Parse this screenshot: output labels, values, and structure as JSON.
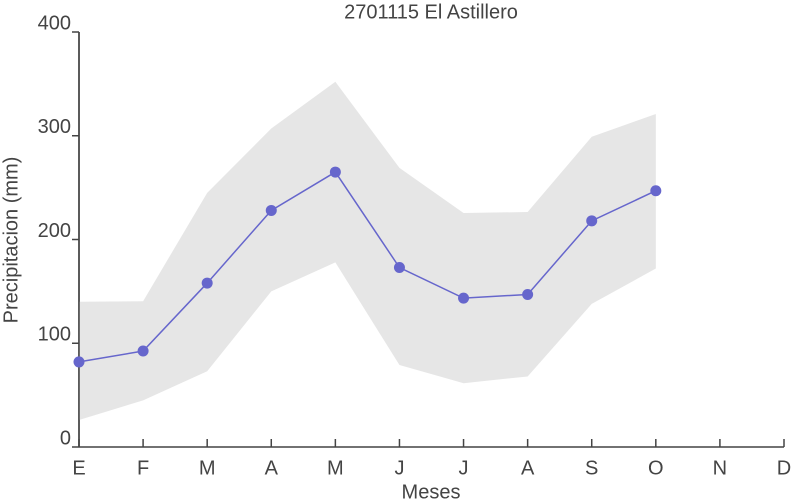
{
  "chart_data": {
    "type": "line",
    "title": "2701115 El Astillero",
    "x_label": "Meses",
    "y_label": "Precipitacion (mm)",
    "categories": [
      "E",
      "F",
      "M",
      "A",
      "M",
      "J",
      "J",
      "A",
      "S",
      "O",
      "N",
      "D"
    ],
    "values": [
      82,
      92.5,
      158,
      228,
      265,
      173,
      143.5,
      147,
      218,
      247,
      null,
      null
    ],
    "band": {
      "upper": [
        140,
        140.5,
        245,
        307,
        352,
        269,
        225.5,
        226.5,
        299,
        321,
        null,
        null
      ],
      "lower": [
        26,
        45,
        73,
        150,
        178,
        79,
        61.5,
        68,
        138,
        172,
        null,
        null
      ],
      "color": "#e6e6e6"
    },
    "color": "#6666cc",
    "ylim": [
      0,
      400
    ],
    "yticks": [
      0,
      100,
      200,
      300,
      400
    ]
  }
}
